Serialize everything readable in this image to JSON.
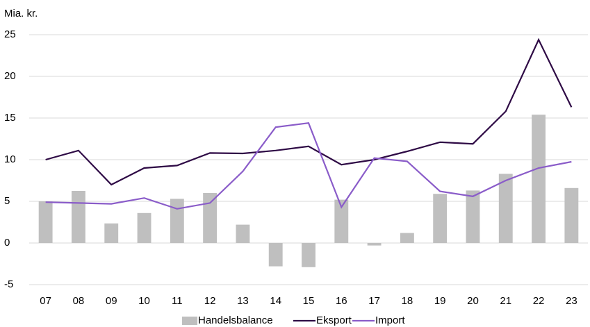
{
  "chart_data": {
    "type": "combo",
    "y_label": "Mia. kr.",
    "categories": [
      "07",
      "08",
      "09",
      "10",
      "11",
      "12",
      "13",
      "14",
      "15",
      "16",
      "17",
      "18",
      "19",
      "20",
      "21",
      "22",
      "23"
    ],
    "series": [
      {
        "name": "Handelsbalance",
        "type": "bar",
        "color": "#bfbfbf",
        "values": [
          5.0,
          6.25,
          2.35,
          3.6,
          5.3,
          6.0,
          2.2,
          -2.8,
          -2.9,
          5.2,
          -0.3,
          1.2,
          5.9,
          6.3,
          8.3,
          15.4,
          6.6
        ]
      },
      {
        "name": "Eksport",
        "type": "line",
        "color": "#2e0a45",
        "values": [
          10.0,
          11.1,
          7.0,
          9.0,
          9.3,
          10.8,
          10.75,
          11.1,
          11.6,
          9.4,
          10.0,
          11.0,
          12.1,
          11.9,
          15.8,
          24.4,
          16.3
        ]
      },
      {
        "name": "Import",
        "type": "line",
        "color": "#8a5cc9",
        "values": [
          4.9,
          4.8,
          4.7,
          5.4,
          4.1,
          4.8,
          8.6,
          13.9,
          14.4,
          4.3,
          10.2,
          9.8,
          6.2,
          5.6,
          7.5,
          9.0,
          9.75
        ]
      }
    ],
    "ylim": [
      -5,
      25
    ],
    "yticks": [
      -5,
      0,
      5,
      10,
      15,
      20,
      25
    ],
    "grid": true,
    "legend": "bottom"
  }
}
